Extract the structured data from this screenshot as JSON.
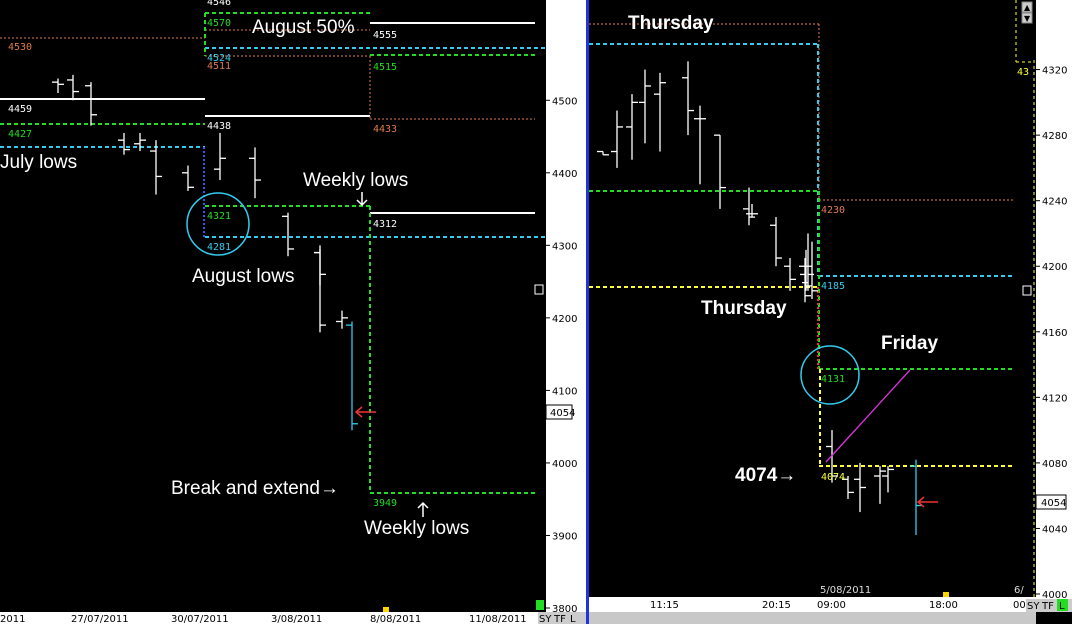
{
  "chart_data": [
    {
      "type": "bar",
      "variant": "ohlc",
      "panel": "left",
      "ylim": [
        3800,
        4550
      ],
      "y_ticks": [
        3800,
        3900,
        4000,
        4100,
        4200,
        4300,
        4400,
        4500
      ],
      "x_tick_labels": [
        "2011",
        "27/07/2011",
        "30/07/2011",
        "3/08/2011",
        "8/08/2011",
        "11/08/2011"
      ],
      "last_price": "4054",
      "bars": [
        {
          "high": 4530,
          "low": 4510,
          "open": 4525,
          "close": 4522
        },
        {
          "high": 4535,
          "low": 4500,
          "open": 4528,
          "close": 4512
        },
        {
          "high": 4525,
          "low": 4465,
          "open": 4520,
          "close": 4480
        },
        {
          "high": 4455,
          "low": 4425,
          "open": 4445,
          "close": 4432
        },
        {
          "high": 4455,
          "low": 4430,
          "open": 4440,
          "close": 4445
        },
        {
          "high": 4445,
          "low": 4370,
          "open": 4430,
          "close": 4395
        },
        {
          "high": 4410,
          "low": 4375,
          "open": 4400,
          "close": 4380
        },
        {
          "high": 4455,
          "low": 4390,
          "open": 4405,
          "close": 4420
        },
        {
          "high": 4435,
          "low": 4365,
          "open": 4420,
          "close": 4390
        },
        {
          "high": 4345,
          "low": 4285,
          "open": 4340,
          "close": 4295
        },
        {
          "high": 4300,
          "low": 4245,
          "open": 4290,
          "close": 4260
        },
        {
          "high": 4295,
          "low": 4180,
          "open": 4290,
          "close": 4190
        },
        {
          "high": 4210,
          "low": 4185,
          "open": 4195,
          "close": 4200
        }
      ],
      "last_bar": {
        "high": 4195,
        "low": 4045,
        "open": 4190,
        "close": 4054
      },
      "levels": [
        {
          "label": "4530",
          "value": 4530,
          "style": "dotted",
          "color": "#e07a4f"
        },
        {
          "label": "4570",
          "value": 4570,
          "style": "dashed",
          "color": "#22dd22"
        },
        {
          "label": "4546",
          "value": 4546,
          "style": "dotted",
          "color": "#e07a4f"
        },
        {
          "label": "4524",
          "value": 4524,
          "style": "dashed",
          "color": "#33ccee"
        },
        {
          "label": "4511",
          "value": 4511,
          "style": "dotted",
          "color": "#e07a4f"
        },
        {
          "label": "4555",
          "value": 4555,
          "style": "solid",
          "color": "#ffffff"
        },
        {
          "label": "4515",
          "value": 4515,
          "style": "dashed",
          "color": "#22dd22"
        },
        {
          "label": "4459",
          "value": 4459,
          "style": "solid",
          "color": "#ffffff"
        },
        {
          "label": "4427",
          "value": 4427,
          "style": "dashed",
          "color": "#22dd22"
        },
        {
          "label": "4438",
          "value": 4438,
          "style": "solid",
          "color": "#ffffff"
        },
        {
          "label": "4433",
          "value": 4433,
          "style": "dotted",
          "color": "#e07a4f"
        },
        {
          "label": "4321",
          "value": 4321,
          "style": "dashed",
          "color": "#22dd22"
        },
        {
          "label": "4281",
          "value": 4281,
          "style": "dashed",
          "color": "#33ccee"
        },
        {
          "label": "4312",
          "value": 4312,
          "style": "solid",
          "color": "#ffffff"
        },
        {
          "label": "3949",
          "value": 3949,
          "style": "dashed",
          "color": "#22dd22"
        }
      ],
      "annotations": [
        "August 50%",
        "July lows",
        "Weekly lows",
        "August lows",
        "Break and extend→",
        "Weekly lows"
      ]
    },
    {
      "type": "bar",
      "variant": "ohlc",
      "panel": "right",
      "ylim": [
        4000,
        4335
      ],
      "y_ticks": [
        4000,
        4040,
        4080,
        4120,
        4160,
        4200,
        4240,
        4280,
        4320
      ],
      "x_tick_labels": [
        "11:15",
        "20:15",
        "09:00",
        "18:00",
        "00"
      ],
      "date_label": "5/08/2011",
      "last_price": "4054",
      "bars": [
        {
          "high": 4270,
          "low": 4268,
          "open": 4270,
          "close": 4268
        },
        {
          "high": 4295,
          "low": 4260,
          "open": 4270,
          "close": 4285
        },
        {
          "high": 4305,
          "low": 4265,
          "open": 4285,
          "close": 4300
        },
        {
          "high": 4320,
          "low": 4275,
          "open": 4300,
          "close": 4310
        },
        {
          "high": 4318,
          "low": 4270,
          "open": 4305,
          "close": 4312
        },
        {
          "high": 4325,
          "low": 4280,
          "open": 4315,
          "close": 4295
        },
        {
          "high": 4298,
          "low": 4250,
          "open": 4290,
          "close": 4290
        },
        {
          "high": 4280,
          "low": 4235,
          "open": 4280,
          "close": 4248
        },
        {
          "high": 4248,
          "low": 4225,
          "open": 4235,
          "close": 4230
        },
        {
          "high": 4238,
          "low": 4230,
          "open": 4232,
          "close": 4232
        },
        {
          "high": 4230,
          "low": 4200,
          "open": 4225,
          "close": 4205
        },
        {
          "high": 4205,
          "low": 4185,
          "open": 4200,
          "close": 4192
        },
        {
          "high": 4205,
          "low": 4178,
          "open": 4200,
          "close": 4182
        },
        {
          "high": 4210,
          "low": 4185,
          "open": 4195,
          "close": 4188
        },
        {
          "high": 4220,
          "low": 4185,
          "open": 4190,
          "close": 4195
        },
        {
          "high": 4215,
          "low": 4180,
          "open": 4200,
          "close": 4185
        },
        {
          "high": 4100,
          "low": 4068,
          "open": 4090,
          "close": 4072
        },
        {
          "high": 4072,
          "low": 4058,
          "open": 4070,
          "close": 4062
        },
        {
          "high": 4080,
          "low": 4050,
          "open": 4070,
          "close": 4065
        },
        {
          "high": 4078,
          "low": 4055,
          "open": 4072,
          "close": 4075
        },
        {
          "high": 4078,
          "low": 4062,
          "open": 4072,
          "close": 4076
        }
      ],
      "last_bar": {
        "high": 4082,
        "low": 4036,
        "open": 4078,
        "close": 4054
      },
      "levels": [
        {
          "label": "Thursday",
          "value": 4334,
          "style": "dotted",
          "color": "#e07a4f"
        },
        {
          "label": "",
          "value": 4324,
          "style": "dashed",
          "color": "#33ccee"
        },
        {
          "label": "",
          "value": 4237,
          "style": "dashed",
          "color": "#22dd22"
        },
        {
          "label": "4230",
          "value": 4230,
          "style": "dotted",
          "color": "#e07a4f"
        },
        {
          "label": "4185",
          "value": 4185,
          "style": "dashed",
          "color": "#33ccee"
        },
        {
          "label": "",
          "value": 4182,
          "style": "dashed",
          "color": "#ffff33"
        },
        {
          "label": "4131",
          "value": 4131,
          "style": "dashed",
          "color": "#22dd22"
        },
        {
          "label": "4074",
          "value": 4074,
          "style": "dashed",
          "color": "#ffff33"
        }
      ],
      "annotations": [
        "Thursday",
        "Thursday",
        "Friday",
        "4074→"
      ]
    }
  ],
  "left_panel": {
    "annotations": {
      "august_50": "August 50%",
      "july_lows": "July lows",
      "weekly_lows_top": "Weekly lows",
      "august_lows": "August lows",
      "break_extend": "Break and extend→",
      "weekly_lows_bottom": "Weekly lows"
    },
    "level_tags": {
      "l4530": "4530",
      "l4570": "4570",
      "l4546": "4546",
      "l4524": "4524",
      "l4511": "4511",
      "l4555": "4555",
      "l4515": "4515",
      "l4459": "4459",
      "l4427": "4427",
      "l4438": "4438",
      "l4433": "4433",
      "l4321": "4321",
      "l4281": "4281",
      "l4312": "4312",
      "l3949": "3949"
    },
    "y_axis": [
      "4500",
      "4400",
      "4300",
      "4200",
      "4100",
      "4000",
      "3900",
      "3800"
    ],
    "price_box": "4054",
    "x_axis": [
      "2011",
      "27/07/2011",
      "30/07/2011",
      "3/08/2011",
      "8/08/2011",
      "11/08/2011"
    ],
    "corner_buttons": [
      "SY",
      "TF",
      "L"
    ]
  },
  "right_panel": {
    "annotations": {
      "thursday_top": "Thursday",
      "thursday_mid": "Thursday",
      "friday": "Friday",
      "level_4074": "4074→"
    },
    "level_tags": {
      "l4230": "4230",
      "l4185": "4185",
      "l4131": "4131",
      "l4074": "4074",
      "l43": "43"
    },
    "y_axis": [
      "4320",
      "4280",
      "4240",
      "4200",
      "4160",
      "4120",
      "4080",
      "4040",
      "4000"
    ],
    "price_box": "4054",
    "date_label": "5/08/2011",
    "edge_label": "6/",
    "x_axis": [
      "11:15",
      "20:15",
      "09:00",
      "18:00",
      "00"
    ],
    "corner_buttons": [
      "SY",
      "TF",
      "L"
    ]
  },
  "colors": {
    "background": "#000000",
    "axis_bg": "#ffffff",
    "green": "#22dd22",
    "cyan": "#33ccee",
    "salmon": "#e07a4f",
    "yellow": "#ffff33",
    "magenta": "#dd33dd",
    "red": "#ee3333",
    "divider": "#2233dd"
  }
}
